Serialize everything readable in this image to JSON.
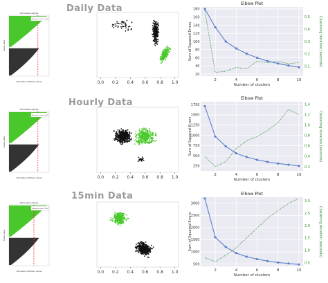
{
  "rows": [
    {
      "title": "Daily Data",
      "silhouette_title": "Silhouette Analysis",
      "silhouette_legend": "Silhouette score: 0.000",
      "xlabel_sil": "Silhouette coefficient values",
      "ylabel_sil": "Cluster label"
    },
    {
      "title": "Hourly Data",
      "silhouette_title": "Silhouette Analysis",
      "silhouette_legend": "Silhouette score: 0.000",
      "xlabel_sil": "Silhouette coefficient values",
      "ylabel_sil": "Cluster label"
    },
    {
      "title": "15min Data",
      "silhouette_title": "Silhouette Analysis",
      "silhouette_legend": "Silhouette score: 0.000",
      "xlabel_sil": "Silhouette coefficient values",
      "ylabel_sil": "Cluster label"
    }
  ],
  "colors": {
    "green": "#48c82a",
    "black": "#111111",
    "sse_line": "#5b7fc8",
    "duration_line": "#2e8b2e",
    "grid_bg": "#eaeaf2",
    "red": "#e03030"
  },
  "chart_data": [
    {
      "type": "scatter",
      "panel": "daily-scatter",
      "xticks": [
        "0.0",
        "0.2",
        "0.4",
        "0.6",
        "0.8",
        "1.0"
      ],
      "yticks": [],
      "xlim": [
        -0.05,
        1.05
      ],
      "ylim": [
        0,
        1
      ]
    },
    {
      "type": "line",
      "panel": "daily-elbow",
      "title": "Elbow Plot",
      "xlabel": "Number of clusters",
      "ylabel": "Sum of Squared Errors",
      "y2label": "Clustering duration (seconds)",
      "x": [
        1,
        2,
        3,
        4,
        5,
        6,
        7,
        8,
        9,
        10
      ],
      "xticks": [
        "2",
        "4",
        "6",
        "8",
        "10"
      ],
      "xlim": [
        0.6,
        10.4
      ],
      "yticks": [
        "20",
        "40",
        "60",
        "80",
        "100",
        "120",
        "140",
        "160",
        "180"
      ],
      "ylim": [
        15,
        185
      ],
      "y2ticks": [
        "0.1",
        "0.2",
        "0.3",
        "0.4",
        "0.5"
      ],
      "y2lim": [
        0.02,
        0.58
      ],
      "series": [
        {
          "values": [
            180,
            135,
            100,
            83,
            70,
            60,
            52,
            46,
            41,
            37
          ]
        },
        {
          "values": [
            0.55,
            0.05,
            0.06,
            0.09,
            0.08,
            0.14,
            0.13,
            0.14,
            0.12,
            0.13
          ]
        }
      ]
    },
    {
      "type": "scatter",
      "panel": "hourly-scatter",
      "xticks": [
        "0.0",
        "0.2",
        "0.4",
        "0.6",
        "0.8",
        "1.0"
      ],
      "yticks": [],
      "xlim": [
        -0.05,
        1.05
      ],
      "ylim": [
        0,
        1
      ]
    },
    {
      "type": "line",
      "panel": "hourly-elbow",
      "title": "Elbow Plot",
      "xlabel": "Number of clusters",
      "ylabel": "Sum of Squared Errors",
      "y2label": "Clustering duration (seconds)",
      "x": [
        1,
        2,
        3,
        4,
        5,
        6,
        7,
        8,
        9,
        10
      ],
      "xticks": [
        "2",
        "4",
        "6",
        "8",
        "10"
      ],
      "xlim": [
        0.6,
        10.4
      ],
      "yticks": [
        "250",
        "500",
        "750",
        "1000",
        "1250",
        "1500",
        "1750"
      ],
      "ylim": [
        130,
        1820
      ],
      "y2ticks": [
        "0.2",
        "0.4",
        "0.6",
        "0.8",
        "1.0",
        "1.2",
        "1.4"
      ],
      "y2lim": [
        0.12,
        1.45
      ],
      "series": [
        {
          "values": [
            1710,
            970,
            730,
            560,
            470,
            400,
            350,
            310,
            280,
            250
          ]
        },
        {
          "values": [
            0.4,
            0.2,
            0.3,
            0.55,
            0.7,
            0.78,
            0.9,
            1.05,
            1.3,
            1.2
          ]
        }
      ]
    },
    {
      "type": "scatter",
      "panel": "15min-scatter",
      "xticks": [
        "0.0",
        "0.2",
        "0.4",
        "0.6",
        "0.8",
        "1.0"
      ],
      "yticks": [],
      "xlim": [
        -0.05,
        1.05
      ],
      "ylim": [
        0,
        1
      ]
    },
    {
      "type": "line",
      "panel": "15min-elbow",
      "title": "Elbow Plot",
      "xlabel": "Number of clusters",
      "ylabel": "Sum of Squared Errors",
      "y2label": "Clustering duration (seconds)",
      "x": [
        1,
        2,
        3,
        4,
        5,
        6,
        7,
        8,
        9,
        10
      ],
      "xticks": [
        "2",
        "4",
        "6",
        "8",
        "10"
      ],
      "xlim": [
        0.6,
        10.4
      ],
      "yticks": [
        "500",
        "1000",
        "1500",
        "2000",
        "2500",
        "3000"
      ],
      "ylim": [
        400,
        3250
      ],
      "y2ticks": [
        "0.5",
        "1.0",
        "1.5",
        "2.0",
        "2.5",
        "3.0"
      ],
      "y2lim": [
        0.35,
        3.15
      ],
      "series": [
        {
          "values": [
            3200,
            1600,
            1200,
            950,
            800,
            700,
            620,
            560,
            520,
            480
          ]
        },
        {
          "values": [
            0.7,
            0.55,
            0.8,
            1.1,
            1.5,
            1.9,
            2.3,
            2.6,
            2.9,
            3.1
          ]
        }
      ]
    }
  ]
}
